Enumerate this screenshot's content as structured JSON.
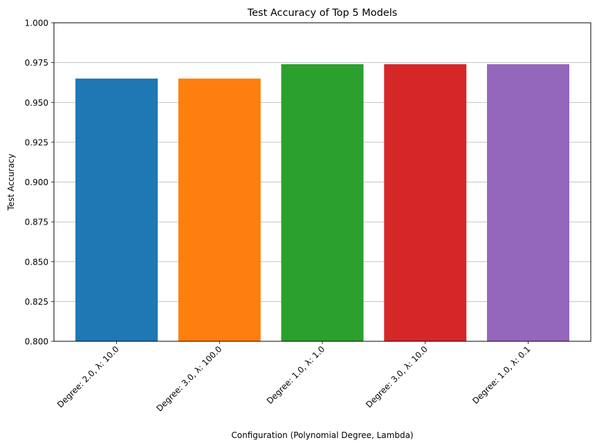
{
  "chart_data": {
    "type": "bar",
    "title": "Test Accuracy of Top 5 Models",
    "xlabel": "Configuration (Polynomial Degree, Lambda)",
    "ylabel": "Test Accuracy",
    "categories": [
      "Degree: 2.0, λ: 10.0",
      "Degree: 3.0, λ: 100.0",
      "Degree: 1.0, λ: 1.0",
      "Degree: 3.0, λ: 10.0",
      "Degree: 1.0, λ: 0.1"
    ],
    "values": [
      0.965,
      0.965,
      0.974,
      0.974,
      0.974
    ],
    "colors": [
      "#1f77b4",
      "#ff7f0e",
      "#2ca02c",
      "#d62728",
      "#9467bd"
    ],
    "ylim": [
      0.8,
      1.0
    ],
    "yticks": [
      "0.800",
      "0.825",
      "0.850",
      "0.875",
      "0.900",
      "0.925",
      "0.950",
      "0.975",
      "1.000"
    ],
    "grid": "y-axis",
    "legend": "none"
  }
}
